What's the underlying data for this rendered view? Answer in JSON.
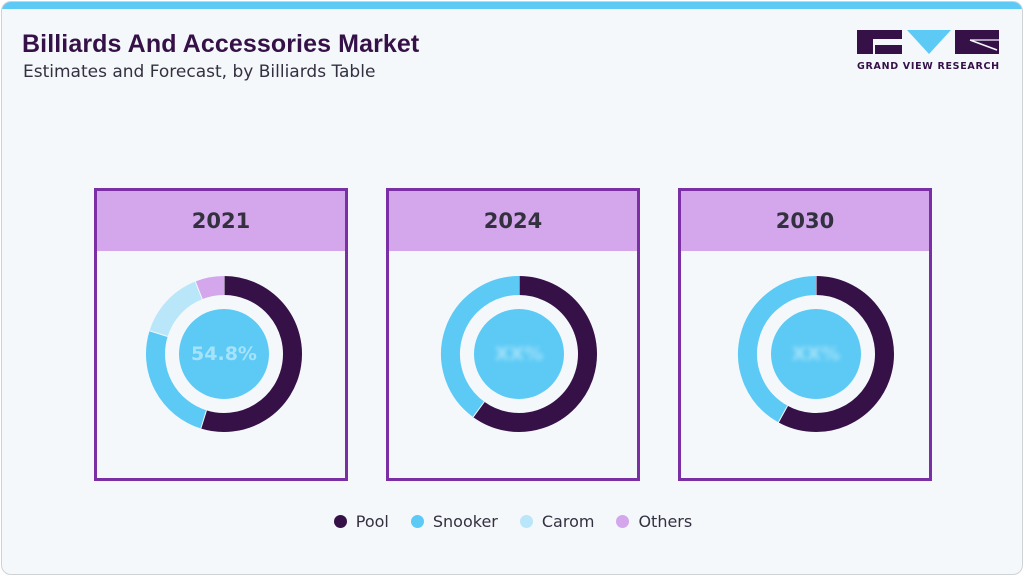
{
  "header": {
    "title": "Billiards And Accessories Market",
    "subtitle": "Estimates and Forecast, by Billiards Table"
  },
  "logo": {
    "text": "GRAND VIEW RESEARCH"
  },
  "colors": {
    "accent_bar": "#5ccaf5",
    "panel_border": "#7b2fa5",
    "panel_header": "#d4a6ec",
    "pool": "#361148",
    "snooker": "#5ccaf5",
    "carom": "#b9e6f8",
    "others": "#d4a6ec"
  },
  "panels": [
    {
      "year": "2021",
      "center_label": "54.8%",
      "center_blurred": false
    },
    {
      "year": "2024",
      "center_label": "XX%",
      "center_blurred": true
    },
    {
      "year": "2030",
      "center_label": "XX%",
      "center_blurred": true
    }
  ],
  "legend": [
    {
      "label": "Pool",
      "color": "#361148"
    },
    {
      "label": "Snooker",
      "color": "#5ccaf5"
    },
    {
      "label": "Carom",
      "color": "#b9e6f8"
    },
    {
      "label": "Others",
      "color": "#d4a6ec"
    }
  ],
  "chart_data": [
    {
      "type": "pie",
      "subtype": "donut",
      "title": "2021",
      "categories": [
        "Pool",
        "Snooker",
        "Carom",
        "Others"
      ],
      "values": [
        54.8,
        25.0,
        14.2,
        6.0
      ],
      "center_label": "54.8%",
      "legend_position": "bottom"
    },
    {
      "type": "pie",
      "subtype": "donut",
      "title": "2024",
      "categories": [
        "Pool",
        "Snooker"
      ],
      "values": [
        60,
        40
      ],
      "center_label": "XX%",
      "legend_position": "bottom"
    },
    {
      "type": "pie",
      "subtype": "donut",
      "title": "2030",
      "categories": [
        "Pool",
        "Snooker"
      ],
      "values": [
        58,
        42
      ],
      "center_label": "XX%",
      "legend_position": "bottom"
    }
  ]
}
